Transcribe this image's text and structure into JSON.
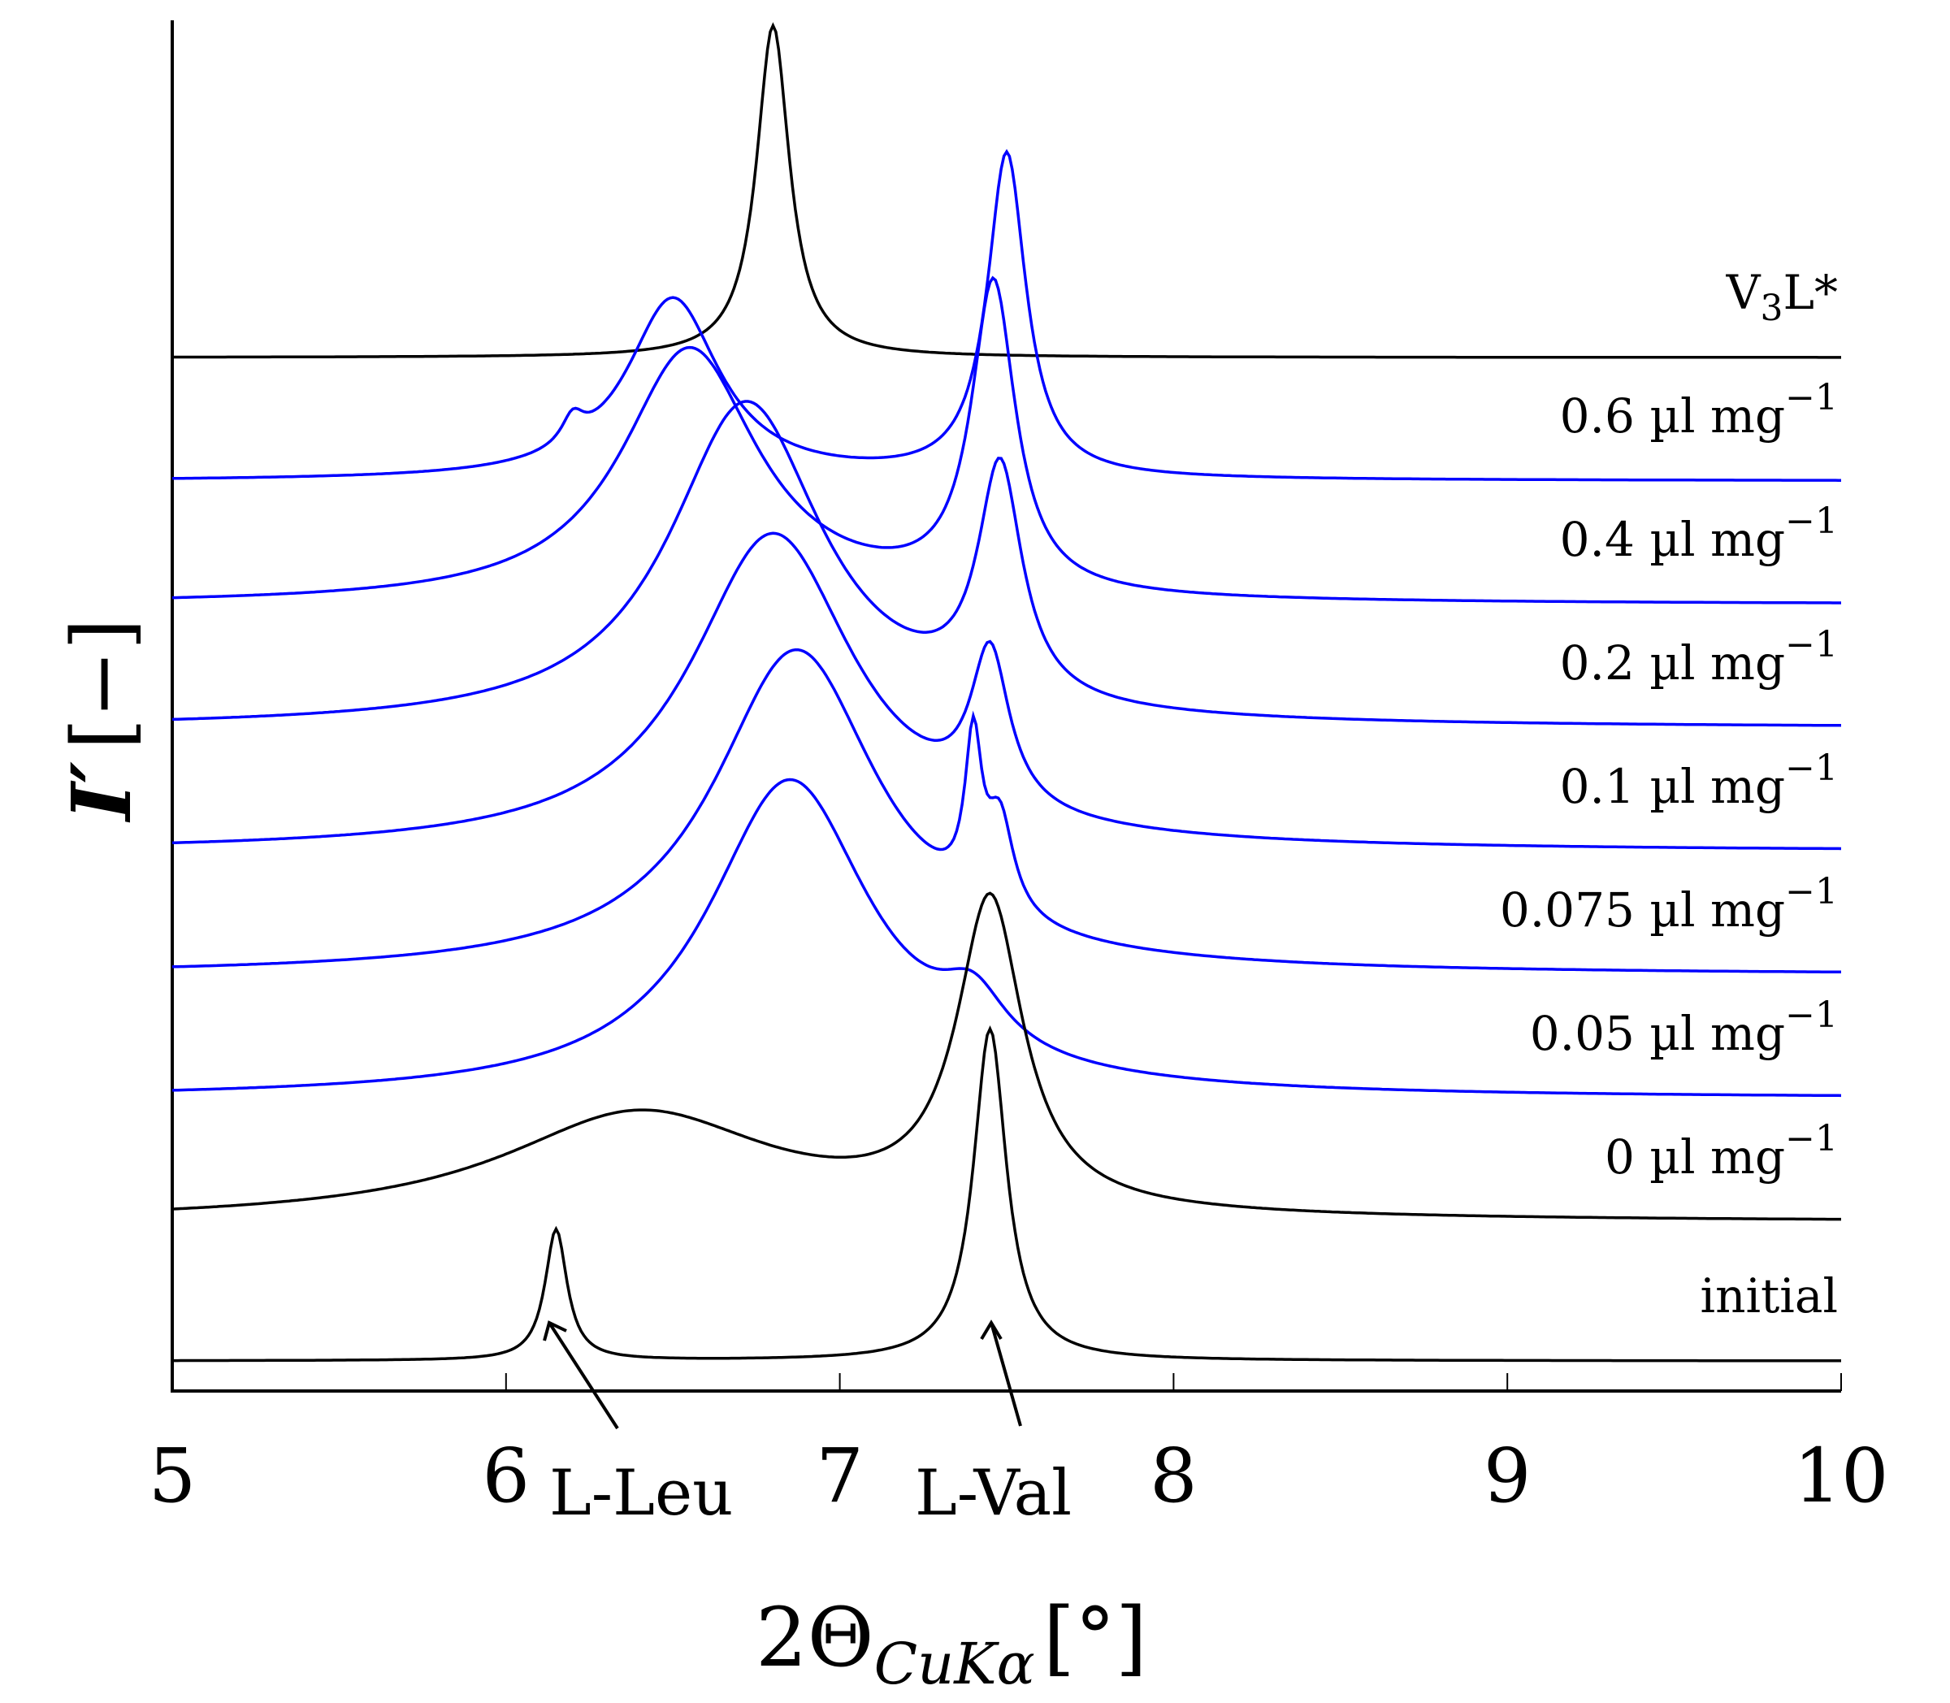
{
  "chart_data": {
    "type": "line",
    "title": "",
    "xlabel": "2Θ",
    "xlabel_subscript": "CuKα",
    "xlabel_unit": "[°]",
    "ylabel": "I′",
    "ylabel_unit": "[−]",
    "xlim": [
      5,
      10
    ],
    "xticks": [
      5,
      6,
      7,
      8,
      9,
      10
    ],
    "grid": false,
    "yaxis_scale": "stacked offsets (arbitrary units)",
    "series": [
      {
        "name": "V3L*",
        "label_main": "V",
        "label_sub": "3",
        "label_tail": "L*",
        "color": "#000000",
        "baseline": 11.0,
        "peaks": [
          {
            "x": 6.8,
            "h": 4.3,
            "w": 0.06
          }
        ]
      },
      {
        "name": "0.6 µl mg-1",
        "label_main": "0.6 µl mg",
        "label_sup": "−1",
        "color": "#0000ff",
        "baseline": 9.4,
        "peaks": [
          {
            "x": 6.5,
            "h": 2.35,
            "w": 0.17
          },
          {
            "x": 7.5,
            "h": 4.2,
            "w": 0.07
          },
          {
            "x": 6.2,
            "h": 0.35,
            "w": 0.04
          }
        ]
      },
      {
        "name": "0.4 µl mg-1",
        "label_main": "0.4 µl mg",
        "label_sup": "−1",
        "color": "#0000ff",
        "baseline": 7.8,
        "peaks": [
          {
            "x": 6.55,
            "h": 3.3,
            "w": 0.25
          },
          {
            "x": 7.46,
            "h": 4.0,
            "w": 0.08
          }
        ]
      },
      {
        "name": "0.2 µl mg-1",
        "label_main": "0.2 µl mg",
        "label_sup": "−1",
        "color": "#0000ff",
        "baseline": 6.2,
        "peaks": [
          {
            "x": 6.72,
            "h": 4.2,
            "w": 0.28
          },
          {
            "x": 7.48,
            "h": 3.0,
            "w": 0.08
          }
        ]
      },
      {
        "name": "0.1 µl mg-1",
        "label_main": "0.1 µl mg",
        "label_sup": "−1",
        "color": "#0000ff",
        "baseline": 4.6,
        "peaks": [
          {
            "x": 6.8,
            "h": 4.1,
            "w": 0.3
          },
          {
            "x": 7.45,
            "h": 2.0,
            "w": 0.07
          }
        ]
      },
      {
        "name": "0.075 µl mg-1",
        "label_main": "0.075 µl mg",
        "label_sup": "−1",
        "color": "#0000ff",
        "baseline": 3.0,
        "peaks": [
          {
            "x": 6.87,
            "h": 4.2,
            "w": 0.3
          },
          {
            "x": 7.4,
            "h": 2.0,
            "w": 0.03
          },
          {
            "x": 7.48,
            "h": 1.2,
            "w": 0.05
          }
        ]
      },
      {
        "name": "0.05 µl mg-1",
        "label_main": "0.05 µl mg",
        "label_sup": "−1",
        "color": "#0000ff",
        "baseline": 1.4,
        "peaks": [
          {
            "x": 6.85,
            "h": 4.1,
            "w": 0.3
          },
          {
            "x": 7.4,
            "h": 0.7,
            "w": 0.12
          }
        ]
      },
      {
        "name": "0 µl mg-1",
        "label_main": "0 µl mg",
        "label_sup": "−1",
        "color": "#000000",
        "baseline": -0.2,
        "peaks": [
          {
            "x": 6.4,
            "h": 1.4,
            "w": 0.5
          },
          {
            "x": 7.45,
            "h": 4.0,
            "w": 0.12
          }
        ]
      },
      {
        "name": "initial",
        "label_main": "initial",
        "label_sup": "",
        "color": "#000000",
        "baseline": -2.0,
        "peaks": [
          {
            "x": 6.15,
            "h": 1.7,
            "w": 0.04
          },
          {
            "x": 7.45,
            "h": 4.3,
            "w": 0.06
          }
        ]
      }
    ],
    "annotations": [
      {
        "text": "L-Leu",
        "x": 6.15,
        "points_to": "initial L-Leu peak"
      },
      {
        "text": "L-Val",
        "x": 7.45,
        "points_to": "initial L-Val peak"
      }
    ]
  }
}
